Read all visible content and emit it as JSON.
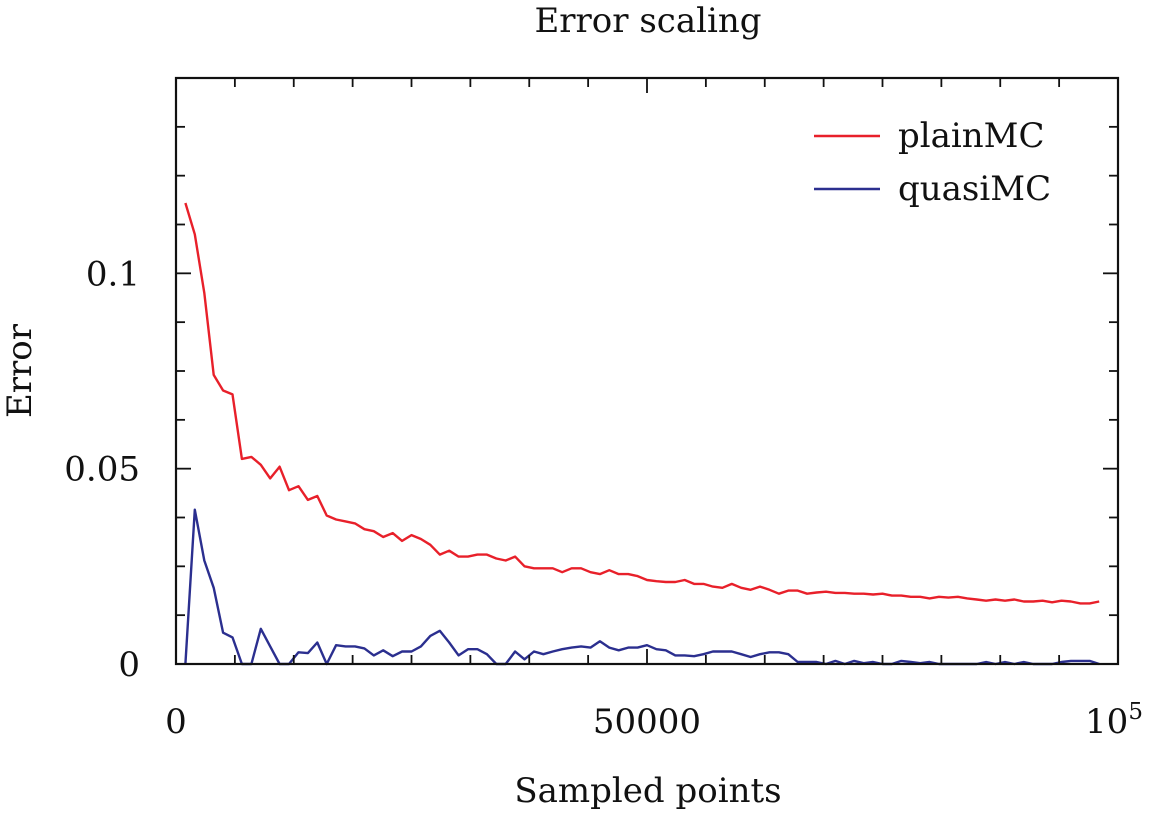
{
  "chart_data": {
    "type": "line",
    "title": "Error scaling",
    "xlabel": "Sampled points",
    "ylabel": "Error",
    "xlim": [
      0,
      100000
    ],
    "ylim": [
      0,
      0.15
    ],
    "x_ticks": [
      {
        "value": 0,
        "label": "0"
      },
      {
        "value": 50000,
        "label": "50000"
      },
      {
        "value": 100000,
        "label": "10",
        "sup": "5"
      }
    ],
    "y_ticks": [
      {
        "value": 0,
        "label": "0"
      },
      {
        "value": 0.05,
        "label": "0.05"
      },
      {
        "value": 0.1,
        "label": "0.1"
      }
    ],
    "grid": false,
    "legend_position": "top-right",
    "series": [
      {
        "name": "plainMC",
        "color": "#e8202a",
        "points": [
          [
            1000,
            0.118
          ],
          [
            2000,
            0.11
          ],
          [
            3000,
            0.095
          ],
          [
            4000,
            0.074
          ],
          [
            5000,
            0.07
          ],
          [
            6000,
            0.069
          ],
          [
            7000,
            0.0525
          ],
          [
            8000,
            0.053
          ],
          [
            9000,
            0.051
          ],
          [
            10000,
            0.0475
          ],
          [
            11000,
            0.0505
          ],
          [
            12000,
            0.0445
          ],
          [
            13000,
            0.0455
          ],
          [
            14000,
            0.042
          ],
          [
            15000,
            0.043
          ],
          [
            16000,
            0.038
          ],
          [
            17000,
            0.037
          ],
          [
            18000,
            0.0365
          ],
          [
            19000,
            0.036
          ],
          [
            20000,
            0.0345
          ],
          [
            21000,
            0.034
          ],
          [
            22000,
            0.0325
          ],
          [
            23000,
            0.0335
          ],
          [
            24000,
            0.0315
          ],
          [
            25000,
            0.033
          ],
          [
            26000,
            0.032
          ],
          [
            27000,
            0.0305
          ],
          [
            28000,
            0.028
          ],
          [
            29000,
            0.029
          ],
          [
            30000,
            0.0275
          ],
          [
            31000,
            0.0275
          ],
          [
            32000,
            0.028
          ],
          [
            33000,
            0.028
          ],
          [
            34000,
            0.027
          ],
          [
            35000,
            0.0265
          ],
          [
            36000,
            0.0275
          ],
          [
            37000,
            0.025
          ],
          [
            38000,
            0.0245
          ],
          [
            39000,
            0.0245
          ],
          [
            40000,
            0.0245
          ],
          [
            41000,
            0.0235
          ],
          [
            42000,
            0.0245
          ],
          [
            43000,
            0.0245
          ],
          [
            44000,
            0.0235
          ],
          [
            45000,
            0.023
          ],
          [
            46000,
            0.024
          ],
          [
            47000,
            0.023
          ],
          [
            48000,
            0.023
          ],
          [
            49000,
            0.0225
          ],
          [
            50000,
            0.0215
          ],
          [
            51000,
            0.0212
          ],
          [
            52000,
            0.021
          ],
          [
            53000,
            0.021
          ],
          [
            54000,
            0.0215
          ],
          [
            55000,
            0.0205
          ],
          [
            56000,
            0.0205
          ],
          [
            57000,
            0.0198
          ],
          [
            58000,
            0.0195
          ],
          [
            59000,
            0.0205
          ],
          [
            60000,
            0.0195
          ],
          [
            61000,
            0.019
          ],
          [
            62000,
            0.0198
          ],
          [
            63000,
            0.019
          ],
          [
            64000,
            0.018
          ],
          [
            65000,
            0.0188
          ],
          [
            66000,
            0.0188
          ],
          [
            67000,
            0.018
          ],
          [
            68000,
            0.0183
          ],
          [
            69000,
            0.0185
          ],
          [
            70000,
            0.0182
          ],
          [
            71000,
            0.0182
          ],
          [
            72000,
            0.018
          ],
          [
            73000,
            0.018
          ],
          [
            74000,
            0.0178
          ],
          [
            75000,
            0.018
          ],
          [
            76000,
            0.0175
          ],
          [
            77000,
            0.0175
          ],
          [
            78000,
            0.0172
          ],
          [
            79000,
            0.0172
          ],
          [
            80000,
            0.0168
          ],
          [
            81000,
            0.0172
          ],
          [
            82000,
            0.017
          ],
          [
            83000,
            0.0172
          ],
          [
            84000,
            0.0168
          ],
          [
            85000,
            0.0165
          ],
          [
            86000,
            0.0162
          ],
          [
            87000,
            0.0165
          ],
          [
            88000,
            0.0162
          ],
          [
            89000,
            0.0165
          ],
          [
            90000,
            0.016
          ],
          [
            91000,
            0.016
          ],
          [
            92000,
            0.0162
          ],
          [
            93000,
            0.0158
          ],
          [
            94000,
            0.0162
          ],
          [
            95000,
            0.016
          ],
          [
            96000,
            0.0155
          ],
          [
            97000,
            0.0155
          ],
          [
            98000,
            0.016
          ]
        ]
      },
      {
        "name": "quasiMC",
        "color": "#2b2f8f",
        "points": [
          [
            1000,
            0.0
          ],
          [
            2000,
            0.0395
          ],
          [
            3000,
            0.0265
          ],
          [
            4000,
            0.0195
          ],
          [
            5000,
            0.008
          ],
          [
            6000,
            0.0068
          ],
          [
            7000,
            0.0
          ],
          [
            8000,
            0.0
          ],
          [
            9000,
            0.009
          ],
          [
            10000,
            0.0045
          ],
          [
            11000,
            0.0
          ],
          [
            12000,
            0.0
          ],
          [
            13000,
            0.003
          ],
          [
            14000,
            0.0028
          ],
          [
            15000,
            0.0055
          ],
          [
            16000,
            0.0
          ],
          [
            17000,
            0.0048
          ],
          [
            18000,
            0.0045
          ],
          [
            19000,
            0.0045
          ],
          [
            20000,
            0.004
          ],
          [
            21000,
            0.0022
          ],
          [
            22000,
            0.0035
          ],
          [
            23000,
            0.002
          ],
          [
            24000,
            0.0032
          ],
          [
            25000,
            0.0032
          ],
          [
            26000,
            0.0045
          ],
          [
            27000,
            0.0072
          ],
          [
            28000,
            0.0085
          ],
          [
            29000,
            0.0055
          ],
          [
            30000,
            0.0022
          ],
          [
            31000,
            0.0038
          ],
          [
            32000,
            0.0038
          ],
          [
            33000,
            0.0025
          ],
          [
            34000,
            0.0
          ],
          [
            35000,
            0.0
          ],
          [
            36000,
            0.0032
          ],
          [
            37000,
            0.0012
          ],
          [
            38000,
            0.0032
          ],
          [
            39000,
            0.0025
          ],
          [
            40000,
            0.0032
          ],
          [
            41000,
            0.0038
          ],
          [
            42000,
            0.0042
          ],
          [
            43000,
            0.0045
          ],
          [
            44000,
            0.0042
          ],
          [
            45000,
            0.0058
          ],
          [
            46000,
            0.0042
          ],
          [
            47000,
            0.0035
          ],
          [
            48000,
            0.0042
          ],
          [
            49000,
            0.0042
          ],
          [
            50000,
            0.0048
          ],
          [
            51000,
            0.0038
          ],
          [
            52000,
            0.0035
          ],
          [
            53000,
            0.0022
          ],
          [
            54000,
            0.0022
          ],
          [
            55000,
            0.002
          ],
          [
            56000,
            0.0025
          ],
          [
            57000,
            0.0032
          ],
          [
            58000,
            0.0032
          ],
          [
            59000,
            0.0032
          ],
          [
            60000,
            0.0025
          ],
          [
            61000,
            0.0018
          ],
          [
            62000,
            0.0025
          ],
          [
            63000,
            0.003
          ],
          [
            64000,
            0.003
          ],
          [
            65000,
            0.0025
          ],
          [
            66000,
            0.0005
          ],
          [
            67000,
            0.0005
          ],
          [
            68000,
            0.0005
          ],
          [
            69000,
            0.0
          ],
          [
            70000,
            0.0008
          ],
          [
            71000,
            0.0
          ],
          [
            72000,
            0.0008
          ],
          [
            73000,
            0.0002
          ],
          [
            74000,
            0.0005
          ],
          [
            75000,
            0.0
          ],
          [
            76000,
            0.0
          ],
          [
            77000,
            0.0008
          ],
          [
            78000,
            0.0005
          ],
          [
            79000,
            0.0002
          ],
          [
            80000,
            0.0005
          ],
          [
            81000,
            0.0
          ],
          [
            82000,
            0.0
          ],
          [
            83000,
            0.0
          ],
          [
            84000,
            0.0
          ],
          [
            85000,
            0.0
          ],
          [
            86000,
            0.0005
          ],
          [
            87000,
            0.0
          ],
          [
            88000,
            0.0005
          ],
          [
            89000,
            0.0
          ],
          [
            90000,
            0.0005
          ],
          [
            91000,
            0.0
          ],
          [
            92000,
            0.0
          ],
          [
            93000,
            0.0
          ],
          [
            94000,
            0.0005
          ],
          [
            95000,
            0.0008
          ],
          [
            96000,
            0.0008
          ],
          [
            97000,
            0.0008
          ],
          [
            98000,
            0.0
          ]
        ]
      }
    ]
  }
}
